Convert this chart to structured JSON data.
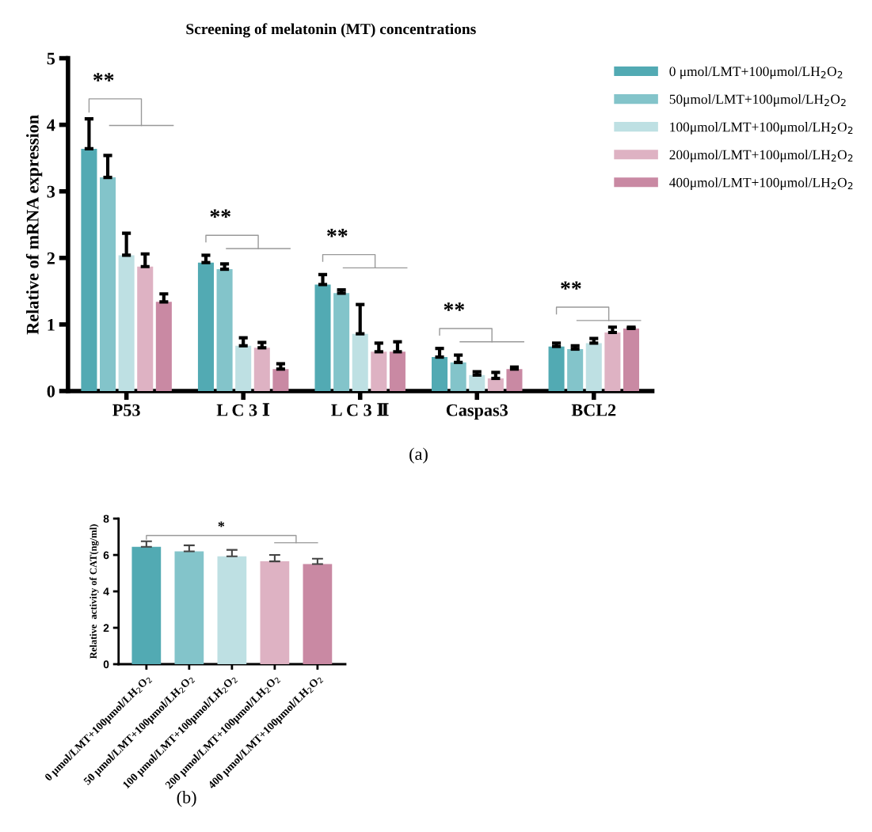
{
  "chart_data": [
    {
      "type": "bar",
      "title": "Screening of melatonin (MT) concentrations",
      "ylabel": "Relative of mRNA expression",
      "categories": [
        "P53",
        "L C 3 Ⅰ",
        "L C 3 Ⅱ",
        "Caspas3",
        "BCL2"
      ],
      "series": [
        {
          "name": "0 μmol/LMT+100μmol/LH$_{2}$O$_{2}$",
          "color": "#52aab3",
          "values": [
            3.64,
            1.93,
            1.6,
            0.51,
            0.67
          ],
          "errors": [
            [
              3.64,
              4.09
            ],
            [
              1.93,
              2.04
            ],
            [
              1.6,
              1.75
            ],
            [
              0.51,
              0.64
            ],
            [
              0.67,
              0.72
            ]
          ]
        },
        {
          "name": "50μmol/LMT+100μmol/LH$_{2}$O$_{2}$",
          "color": "#83c4ca",
          "values": [
            3.21,
            1.83,
            1.47,
            0.43,
            0.63
          ],
          "errors": [
            [
              3.21,
              3.54
            ],
            [
              1.83,
              1.91
            ],
            [
              1.47,
              1.52
            ],
            [
              0.43,
              0.54
            ],
            [
              0.63,
              0.68
            ]
          ]
        },
        {
          "name": "100μmol/LMT+100μmol/LH$_{2}$O$_{2}$",
          "color": "#bee0e3",
          "values": [
            2.04,
            0.68,
            0.86,
            0.24,
            0.72
          ],
          "errors": [
            [
              2.04,
              2.37
            ],
            [
              0.68,
              0.8
            ],
            [
              0.86,
              1.3
            ],
            [
              0.24,
              0.29
            ],
            [
              0.72,
              0.79
            ]
          ]
        },
        {
          "name": "200μmol/LMT+100μmol/LH$_{2}$O$_{2}$",
          "color": "#deb2c3",
          "values": [
            1.87,
            0.65,
            0.59,
            0.19,
            0.88
          ],
          "errors": [
            [
              1.87,
              2.06
            ],
            [
              0.65,
              0.73
            ],
            [
              0.59,
              0.72
            ],
            [
              0.19,
              0.28
            ],
            [
              0.88,
              0.96
            ]
          ]
        },
        {
          "name": "400μmol/LMT+100μmol/LH$_{2}$O$_{2}$",
          "color": "#c989a3",
          "values": [
            1.34,
            0.33,
            0.59,
            0.33,
            0.94
          ],
          "errors": [
            [
              1.34,
              1.46
            ],
            [
              0.33,
              0.41
            ],
            [
              0.59,
              0.74
            ],
            [
              0.33,
              0.36
            ],
            [
              0.94,
              0.96
            ]
          ]
        }
      ],
      "ylim": [
        0,
        5
      ],
      "yticks": [
        0,
        1,
        2,
        3,
        4,
        5
      ],
      "grid": false,
      "legend": "top right",
      "annotations": [
        "**",
        "**",
        "**",
        "**",
        "**",
        "(a)"
      ]
    },
    {
      "type": "bar",
      "ylabel": "Relative  activity of CAT(ng/ml)",
      "categories": [
        "0 μmol/LMT+100μmol/LH$_{2}$O$_{2}$",
        "50 μmol/LMT+100μmol/LH$_{2}$O$_{2}$",
        "100 μmol/LMT+100μmol/LH$_{2}$O$_{2}$",
        "200 μmol/LMT+100μmol/LH$_{2}$O$_{2}$",
        "400 μmol/LMT+100μmol/LH$_{2}$O$_{2}$"
      ],
      "values": [
        6.45,
        6.2,
        5.93,
        5.65,
        5.5
      ],
      "errors": [
        [
          6.45,
          6.75
        ],
        [
          6.2,
          6.53
        ],
        [
          5.93,
          6.28
        ],
        [
          5.65,
          6.0
        ],
        [
          5.5,
          5.8
        ]
      ],
      "colors": [
        "#52aab3",
        "#83c4ca",
        "#bee0e3",
        "#deb2c3",
        "#c989a3"
      ],
      "ylim": [
        0,
        8
      ],
      "yticks": [
        0,
        2,
        4,
        6,
        8
      ],
      "grid": false,
      "annotations": [
        "*",
        "(b)"
      ]
    }
  ]
}
